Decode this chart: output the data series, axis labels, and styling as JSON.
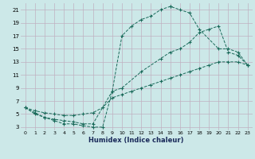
{
  "title": "",
  "xlabel": "Humidex (Indice chaleur)",
  "ylabel": "",
  "bg_color": "#cce8e8",
  "grid_color": "#c0b0c0",
  "line_color": "#1a6a5a",
  "xlim": [
    -0.5,
    23.5
  ],
  "ylim": [
    2.5,
    22
  ],
  "xticks": [
    0,
    1,
    2,
    3,
    4,
    5,
    6,
    7,
    8,
    9,
    10,
    11,
    12,
    13,
    14,
    15,
    16,
    17,
    18,
    19,
    20,
    21,
    22,
    23
  ],
  "yticks": [
    3,
    5,
    7,
    9,
    11,
    13,
    15,
    17,
    19,
    21
  ],
  "curve1_x": [
    0,
    1,
    2,
    3,
    4,
    5,
    6,
    7,
    8,
    9,
    10,
    11,
    12,
    13,
    14,
    15,
    15,
    16,
    17,
    18,
    20,
    21,
    22,
    23
  ],
  "curve1_y": [
    6,
    5,
    4.5,
    4,
    3.5,
    3.5,
    3.2,
    3,
    3,
    8.5,
    17,
    18.5,
    19.5,
    20,
    21,
    21.5,
    21.5,
    21,
    20.5,
    18,
    15,
    15,
    14.5,
    12.5
  ],
  "curve2_x": [
    0,
    1,
    2,
    3,
    4,
    5,
    6,
    7,
    9,
    10,
    12,
    14,
    15,
    16,
    17,
    18,
    19,
    20,
    21,
    22,
    23
  ],
  "curve2_y": [
    6,
    5.2,
    4.5,
    4.2,
    4.0,
    3.8,
    3.5,
    3.5,
    8.5,
    9,
    11.5,
    13.5,
    14.5,
    15,
    16,
    17.5,
    18.0,
    18.5,
    14.5,
    14,
    12.5
  ],
  "curve3_x": [
    0,
    1,
    2,
    3,
    4,
    5,
    6,
    7,
    8,
    9,
    10,
    11,
    12,
    13,
    14,
    15,
    16,
    17,
    18,
    19,
    20,
    21,
    22,
    23
  ],
  "curve3_y": [
    6,
    5.5,
    5.2,
    5.0,
    4.8,
    4.8,
    5.0,
    5.2,
    6.0,
    7.5,
    8,
    8.5,
    9,
    9.5,
    10,
    10.5,
    11,
    11.5,
    12,
    12.5,
    13,
    13,
    13,
    12.5
  ]
}
